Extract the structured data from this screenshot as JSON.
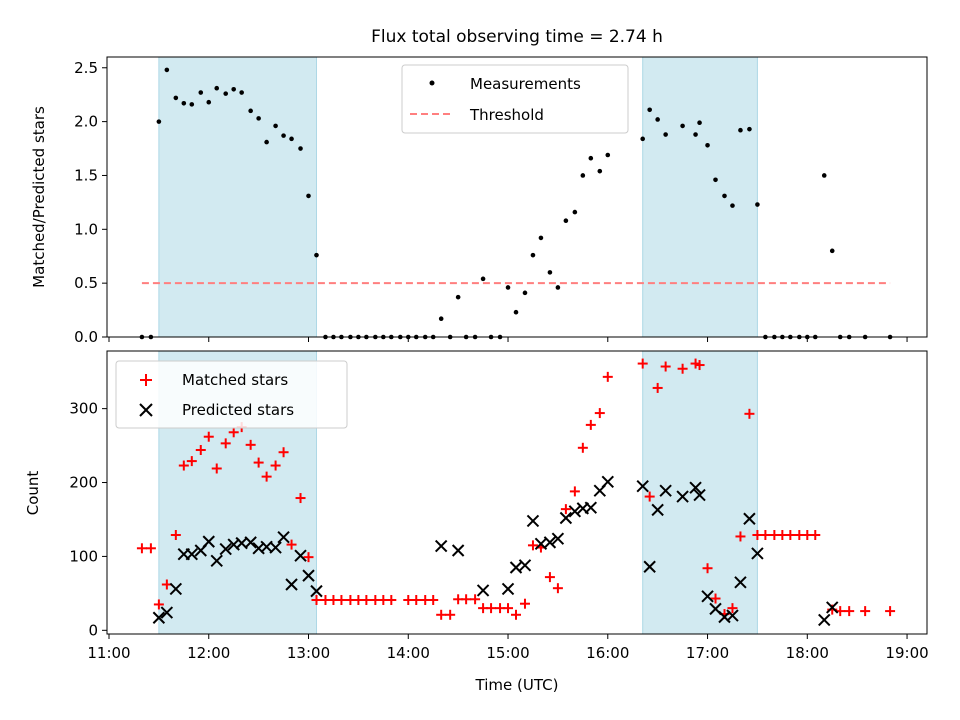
{
  "title": "Flux total observing time = 2.74 h",
  "xlabel": "Time (UTC)",
  "x_tick_labels": [
    "11:00",
    "12:00",
    "13:00",
    "14:00",
    "15:00",
    "16:00",
    "17:00",
    "18:00",
    "19:00"
  ],
  "colors": {
    "shade": "#add8e6",
    "threshold": "#ff7f7f",
    "measurement": "#000000",
    "matched": "#ff0000",
    "predicted": "#000000"
  },
  "chart_data": [
    {
      "type": "scatter",
      "panel": "top",
      "ylabel": "Matched/Predicted stars",
      "xlim": [
        10.98,
        19.2
      ],
      "ylim": [
        0,
        2.6
      ],
      "yticks": [
        0.0,
        0.5,
        1.0,
        1.5,
        2.0,
        2.5
      ],
      "ytick_labels": [
        "0.0",
        "0.5",
        "1.0",
        "1.5",
        "2.0",
        "2.5"
      ],
      "shaded_intervals": [
        [
          11.5,
          13.08
        ],
        [
          16.35,
          17.5
        ]
      ],
      "threshold": {
        "name": "Threshold",
        "y": 0.5,
        "x_range": [
          11.33,
          18.83
        ],
        "style": "dashed"
      },
      "legend": {
        "position": "top-center",
        "entries": [
          "Measurements",
          "Threshold"
        ]
      },
      "series": [
        {
          "name": "Measurements",
          "marker": "dot",
          "points": [
            [
              11.33,
              0
            ],
            [
              11.42,
              0
            ],
            [
              11.5,
              2.0
            ],
            [
              11.58,
              2.48
            ],
            [
              11.67,
              2.22
            ],
            [
              11.75,
              2.17
            ],
            [
              11.83,
              2.16
            ],
            [
              11.92,
              2.27
            ],
            [
              12.0,
              2.18
            ],
            [
              12.08,
              2.31
            ],
            [
              12.17,
              2.26
            ],
            [
              12.25,
              2.3
            ],
            [
              12.33,
              2.27
            ],
            [
              12.42,
              2.1
            ],
            [
              12.5,
              2.03
            ],
            [
              12.58,
              1.81
            ],
            [
              12.67,
              1.96
            ],
            [
              12.75,
              1.87
            ],
            [
              12.83,
              1.84
            ],
            [
              12.92,
              1.75
            ],
            [
              13.0,
              1.31
            ],
            [
              13.08,
              0.76
            ],
            [
              13.17,
              0
            ],
            [
              13.25,
              0
            ],
            [
              13.33,
              0
            ],
            [
              13.42,
              0
            ],
            [
              13.5,
              0
            ],
            [
              13.58,
              0
            ],
            [
              13.67,
              0
            ],
            [
              13.75,
              0
            ],
            [
              13.83,
              0
            ],
            [
              13.92,
              0
            ],
            [
              14.0,
              0
            ],
            [
              14.08,
              0
            ],
            [
              14.17,
              0
            ],
            [
              14.25,
              0
            ],
            [
              14.33,
              0.17
            ],
            [
              14.42,
              0
            ],
            [
              14.5,
              0.37
            ],
            [
              14.58,
              0
            ],
            [
              14.67,
              0
            ],
            [
              14.75,
              0.54
            ],
            [
              14.83,
              0
            ],
            [
              14.92,
              0
            ],
            [
              15.0,
              0.46
            ],
            [
              15.08,
              0.23
            ],
            [
              15.17,
              0.41
            ],
            [
              15.25,
              0.76
            ],
            [
              15.33,
              0.92
            ],
            [
              15.42,
              0.6
            ],
            [
              15.5,
              0.46
            ],
            [
              15.58,
              1.08
            ],
            [
              15.67,
              1.16
            ],
            [
              15.75,
              1.5
            ],
            [
              15.83,
              1.66
            ],
            [
              15.92,
              1.54
            ],
            [
              16.0,
              1.69
            ],
            [
              16.35,
              1.84
            ],
            [
              16.42,
              2.11
            ],
            [
              16.5,
              2.02
            ],
            [
              16.58,
              1.88
            ],
            [
              16.75,
              1.96
            ],
            [
              16.88,
              1.88
            ],
            [
              16.92,
              1.99
            ],
            [
              17.0,
              1.78
            ],
            [
              17.08,
              1.46
            ],
            [
              17.17,
              1.31
            ],
            [
              17.25,
              1.22
            ],
            [
              17.33,
              1.92
            ],
            [
              17.42,
              1.93
            ],
            [
              17.5,
              1.23
            ],
            [
              17.58,
              0
            ],
            [
              17.67,
              0
            ],
            [
              17.75,
              0
            ],
            [
              17.83,
              0
            ],
            [
              17.92,
              0
            ],
            [
              18.0,
              0
            ],
            [
              18.08,
              0
            ],
            [
              18.17,
              1.5
            ],
            [
              18.25,
              0.8
            ],
            [
              18.33,
              0
            ],
            [
              18.42,
              0
            ],
            [
              18.58,
              0
            ],
            [
              18.83,
              0
            ]
          ]
        }
      ]
    },
    {
      "type": "scatter",
      "panel": "bottom",
      "ylabel": "Count",
      "xlabel": "Time (UTC)",
      "xlim": [
        10.98,
        19.2
      ],
      "ylim": [
        -5,
        378
      ],
      "yticks": [
        0,
        100,
        200,
        300
      ],
      "ytick_labels": [
        "0",
        "100",
        "200",
        "300"
      ],
      "shaded_intervals": [
        [
          11.5,
          13.08
        ],
        [
          16.35,
          17.5
        ]
      ],
      "legend": {
        "position": "top-left",
        "entries": [
          "Matched stars",
          "Predicted stars"
        ]
      },
      "series": [
        {
          "name": "Matched stars",
          "marker": "plus",
          "points": [
            [
              11.33,
              111
            ],
            [
              11.42,
              111
            ],
            [
              11.5,
              35
            ],
            [
              11.58,
              62
            ],
            [
              11.67,
              129
            ],
            [
              11.75,
              223
            ],
            [
              11.83,
              229
            ],
            [
              11.92,
              244
            ],
            [
              12.0,
              262
            ],
            [
              12.08,
              219
            ],
            [
              12.17,
              253
            ],
            [
              12.25,
              268
            ],
            [
              12.33,
              275
            ],
            [
              12.42,
              251
            ],
            [
              12.5,
              227
            ],
            [
              12.58,
              208
            ],
            [
              12.67,
              223
            ],
            [
              12.75,
              241
            ],
            [
              12.83,
              116
            ],
            [
              12.92,
              179
            ],
            [
              13.0,
              99
            ],
            [
              13.08,
              41
            ],
            [
              13.17,
              41
            ],
            [
              13.25,
              41
            ],
            [
              13.33,
              41
            ],
            [
              13.42,
              41
            ],
            [
              13.5,
              41
            ],
            [
              13.58,
              41
            ],
            [
              13.67,
              41
            ],
            [
              13.75,
              41
            ],
            [
              13.83,
              41
            ],
            [
              14.0,
              41
            ],
            [
              14.08,
              41
            ],
            [
              14.17,
              41
            ],
            [
              14.25,
              41
            ],
            [
              14.33,
              21
            ],
            [
              14.42,
              21
            ],
            [
              14.5,
              42
            ],
            [
              14.58,
              42
            ],
            [
              14.67,
              42
            ],
            [
              14.75,
              30
            ],
            [
              14.83,
              30
            ],
            [
              14.92,
              30
            ],
            [
              15.0,
              30
            ],
            [
              15.08,
              21
            ],
            [
              15.17,
              36
            ],
            [
              15.25,
              115
            ],
            [
              15.33,
              112
            ],
            [
              15.42,
              72
            ],
            [
              15.5,
              57
            ],
            [
              15.58,
              164
            ],
            [
              15.67,
              188
            ],
            [
              15.75,
              247
            ],
            [
              15.83,
              278
            ],
            [
              15.92,
              294
            ],
            [
              16.0,
              343
            ],
            [
              16.35,
              361
            ],
            [
              16.42,
              181
            ],
            [
              16.5,
              328
            ],
            [
              16.58,
              357
            ],
            [
              16.75,
              354
            ],
            [
              16.88,
              361
            ],
            [
              16.92,
              359
            ],
            [
              17.0,
              84
            ],
            [
              17.08,
              43
            ],
            [
              17.17,
              22
            ],
            [
              17.25,
              30
            ],
            [
              17.33,
              127
            ],
            [
              17.42,
              293
            ],
            [
              17.5,
              129
            ],
            [
              17.58,
              129
            ],
            [
              17.67,
              129
            ],
            [
              17.75,
              129
            ],
            [
              17.83,
              129
            ],
            [
              17.92,
              129
            ],
            [
              18.0,
              129
            ],
            [
              18.08,
              129
            ],
            [
              18.25,
              28
            ],
            [
              18.33,
              26
            ],
            [
              18.42,
              26
            ],
            [
              18.58,
              26
            ],
            [
              18.83,
              26
            ]
          ]
        },
        {
          "name": "Predicted stars",
          "marker": "x",
          "points": [
            [
              11.5,
              17
            ],
            [
              11.58,
              24
            ],
            [
              11.67,
              56
            ],
            [
              11.75,
              103
            ],
            [
              11.83,
              103
            ],
            [
              11.92,
              108
            ],
            [
              12.0,
              120
            ],
            [
              12.08,
              94
            ],
            [
              12.17,
              110
            ],
            [
              12.25,
              116
            ],
            [
              12.33,
              118
            ],
            [
              12.42,
              119
            ],
            [
              12.5,
              111
            ],
            [
              12.58,
              113
            ],
            [
              12.67,
              112
            ],
            [
              12.75,
              126
            ],
            [
              12.83,
              62
            ],
            [
              12.92,
              101
            ],
            [
              13.0,
              74
            ],
            [
              13.08,
              53
            ],
            [
              14.33,
              114
            ],
            [
              14.5,
              108
            ],
            [
              14.75,
              54
            ],
            [
              15.0,
              56
            ],
            [
              15.08,
              85
            ],
            [
              15.17,
              88
            ],
            [
              15.25,
              148
            ],
            [
              15.33,
              117
            ],
            [
              15.42,
              119
            ],
            [
              15.5,
              124
            ],
            [
              15.58,
              152
            ],
            [
              15.67,
              161
            ],
            [
              15.75,
              165
            ],
            [
              15.83,
              166
            ],
            [
              15.92,
              189
            ],
            [
              16.0,
              201
            ],
            [
              16.35,
              195
            ],
            [
              16.42,
              86
            ],
            [
              16.5,
              163
            ],
            [
              16.58,
              189
            ],
            [
              16.75,
              181
            ],
            [
              16.88,
              193
            ],
            [
              16.92,
              183
            ],
            [
              17.0,
              46
            ],
            [
              17.08,
              29
            ],
            [
              17.17,
              18
            ],
            [
              17.25,
              20
            ],
            [
              17.33,
              65
            ],
            [
              17.42,
              151
            ],
            [
              17.5,
              104
            ],
            [
              18.17,
              14
            ],
            [
              18.25,
              31
            ]
          ]
        }
      ]
    }
  ]
}
